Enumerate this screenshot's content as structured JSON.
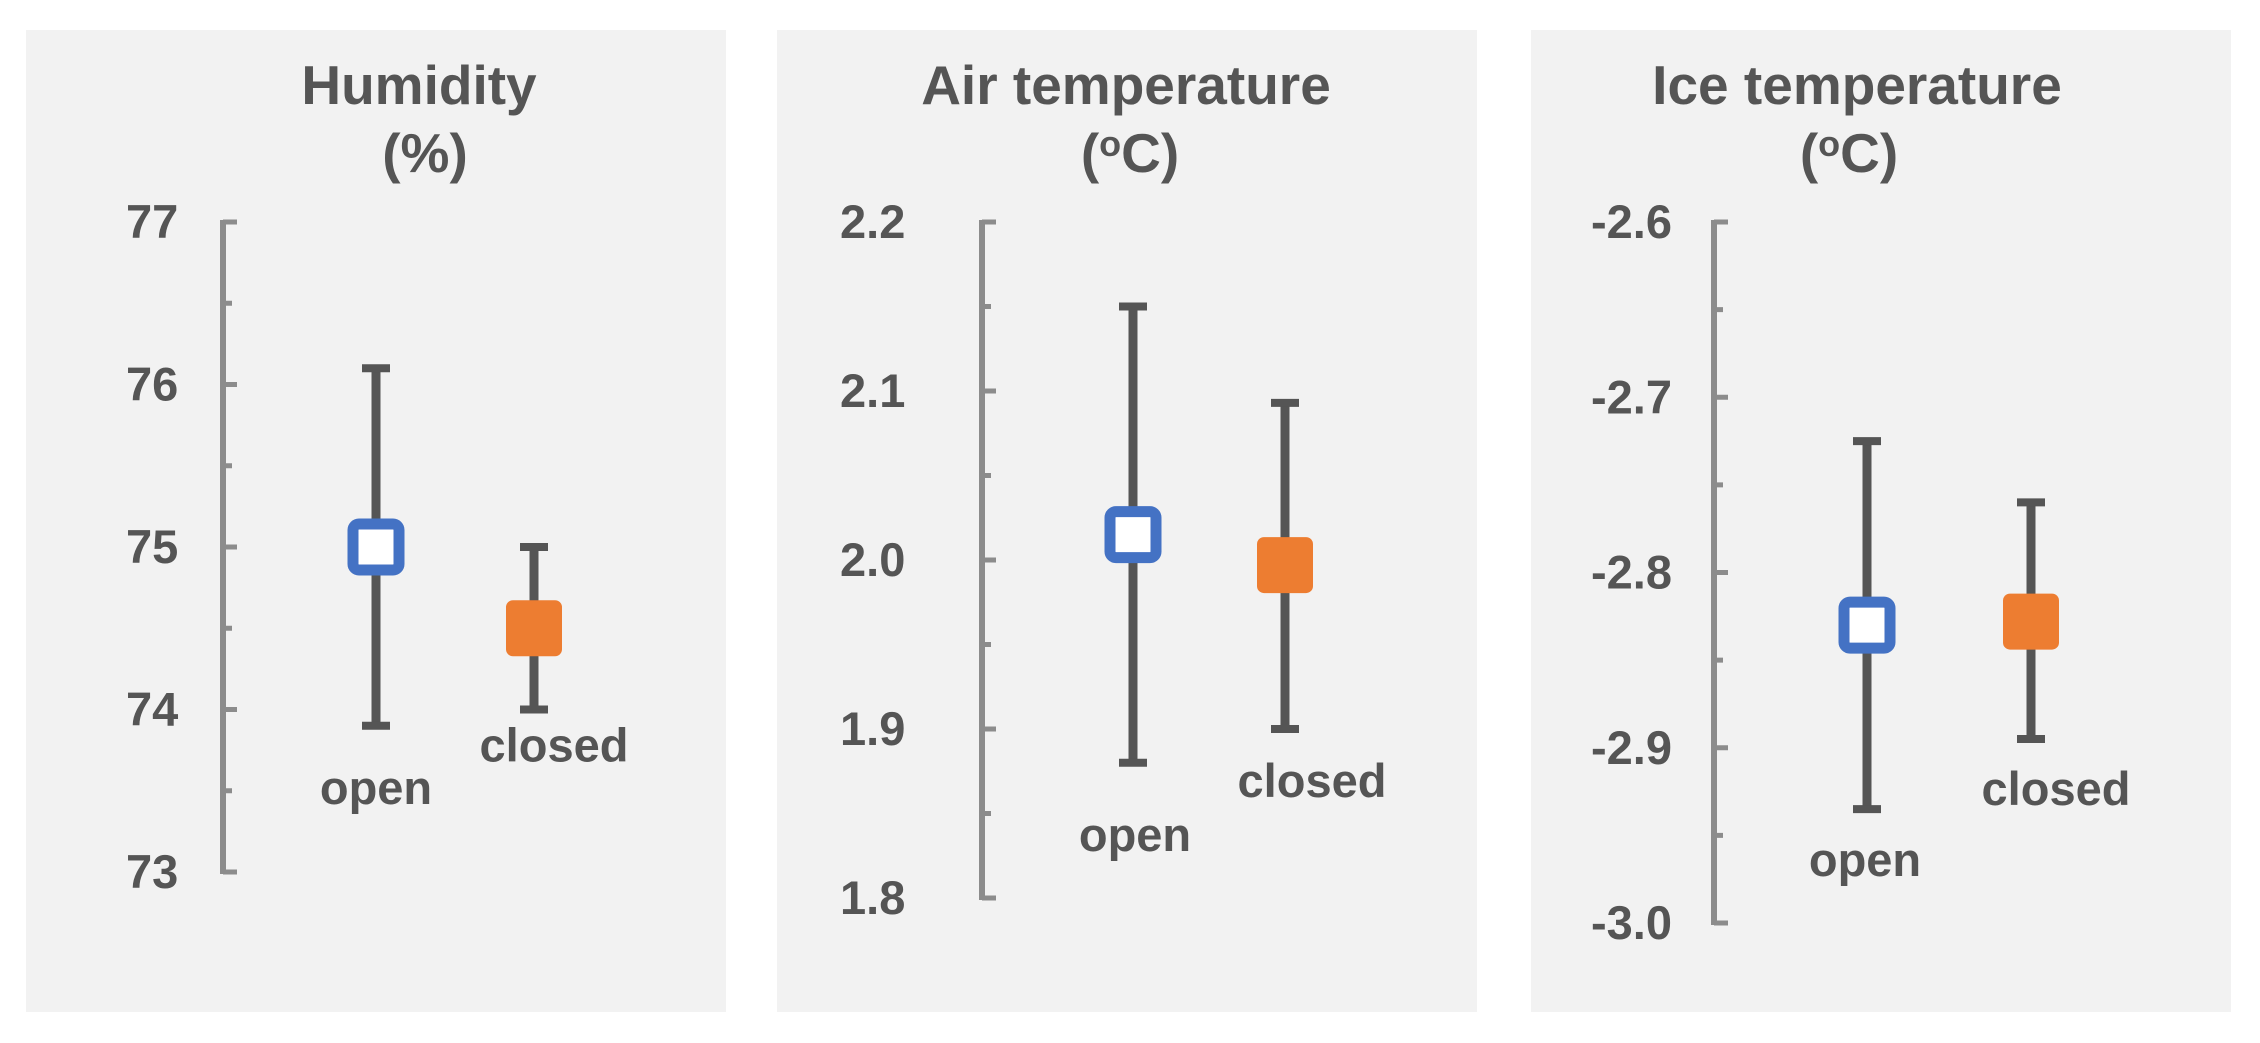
{
  "chart_data": [
    {
      "type": "scatter",
      "title": "Humidity",
      "unit_line": "(%)",
      "ylim": [
        73,
        77
      ],
      "yticks": [
        "77",
        "76",
        "75",
        "74",
        "73"
      ],
      "minor_step": 0.5,
      "grid": false,
      "series": [
        {
          "category": "open",
          "value": 75.0,
          "error_low": 73.9,
          "error_high": 76.1,
          "color": "#4472c4",
          "marker": "hollow-square"
        },
        {
          "category": "closed",
          "value": 74.5,
          "error_low": 74.0,
          "error_high": 75.0,
          "color": "#ed7d31",
          "marker": "filled-square"
        }
      ]
    },
    {
      "type": "scatter",
      "title": "Air temperature",
      "unit_line": "(oC)",
      "ylim": [
        1.8,
        2.2
      ],
      "yticks": [
        "2.2",
        "2.1",
        "2.0",
        "1.9",
        "1.8"
      ],
      "minor_step": 0.05,
      "grid": false,
      "series": [
        {
          "category": "open",
          "value": 2.015,
          "error_low": 1.88,
          "error_high": 2.15,
          "color": "#4472c4",
          "marker": "hollow-square"
        },
        {
          "category": "closed",
          "value": 1.997,
          "error_low": 1.9,
          "error_high": 2.093,
          "color": "#ed7d31",
          "marker": "filled-square"
        }
      ]
    },
    {
      "type": "scatter",
      "title": "Ice temperature",
      "unit_line": "(oC)",
      "ylim": [
        -3.0,
        -2.6
      ],
      "yticks": [
        "-2.6",
        "-2.7",
        "-2.8",
        "-2.9",
        "-3.0"
      ],
      "minor_step": 0.05,
      "grid": false,
      "series": [
        {
          "category": "open",
          "value": -2.83,
          "error_low": -2.935,
          "error_high": -2.725,
          "color": "#4472c4",
          "marker": "hollow-square"
        },
        {
          "category": "closed",
          "value": -2.828,
          "error_low": -2.895,
          "error_high": -2.76,
          "color": "#ed7d31",
          "marker": "filled-square"
        }
      ]
    }
  ]
}
